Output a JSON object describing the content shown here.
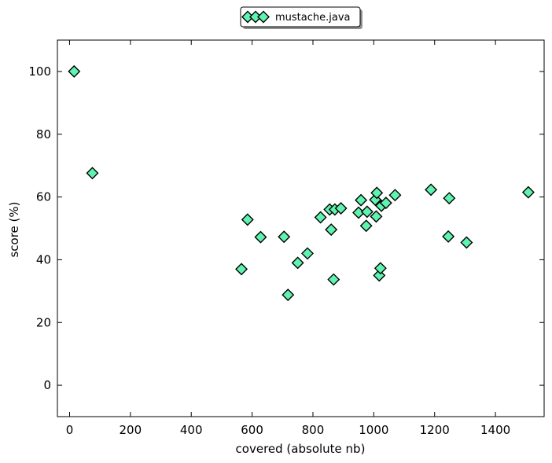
{
  "chart_data": {
    "type": "scatter",
    "xlabel": "covered (absolute nb)",
    "ylabel": "score (%)",
    "xlim": [
      -40,
      1560
    ],
    "ylim": [
      -10,
      110
    ],
    "xticks": [
      0,
      200,
      400,
      600,
      800,
      1000,
      1200,
      1400
    ],
    "yticks": [
      0,
      20,
      40,
      60,
      80,
      100
    ],
    "xtick_labels": [
      "0",
      "200",
      "400",
      "600",
      "800",
      "1000",
      "1200",
      "1400"
    ],
    "ytick_labels": [
      "0",
      "20",
      "40",
      "60",
      "80",
      "100"
    ],
    "grid": false,
    "legend_position": "top-center",
    "series": [
      {
        "name": "mustache.java",
        "marker": "diamond",
        "color": "#5ff3b0",
        "edge_color": "#000000",
        "x": [
          15,
          75,
          565,
          585,
          628,
          705,
          718,
          750,
          782,
          825,
          855,
          860,
          868,
          872,
          892,
          950,
          958,
          975,
          978,
          1005,
          1008,
          1010,
          1018,
          1022,
          1025,
          1040,
          1070,
          1188,
          1245,
          1248,
          1305,
          1508
        ],
        "y": [
          100,
          67.6,
          37,
          52.8,
          47.2,
          47.3,
          28.8,
          39,
          42,
          53.5,
          56,
          49.6,
          33.7,
          56,
          56.4,
          55,
          59,
          50.8,
          55.3,
          59.1,
          53.8,
          61.3,
          35,
          37.3,
          57.2,
          58.1,
          60.6,
          62.3,
          47.4,
          59.6,
          45.5,
          61.5
        ]
      }
    ]
  }
}
